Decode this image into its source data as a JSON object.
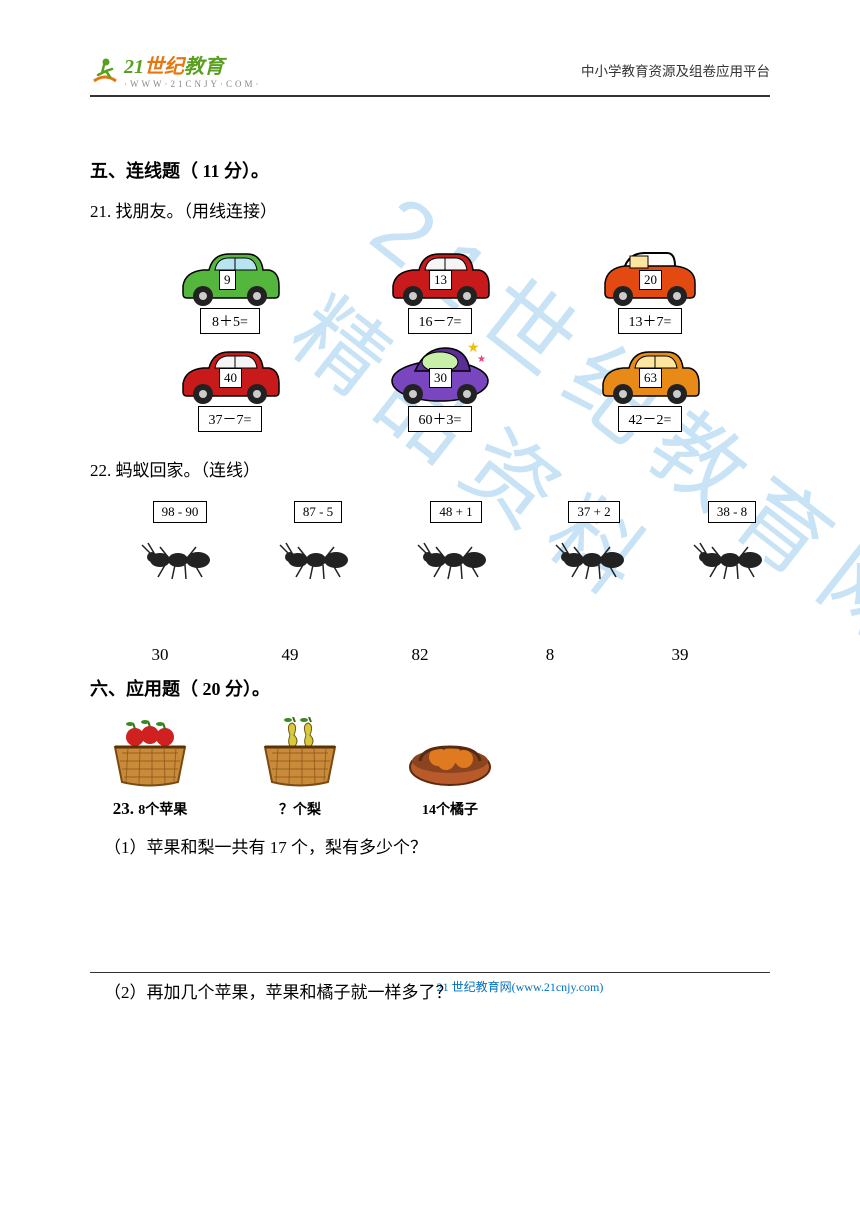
{
  "header": {
    "logo_brand_cn": "世纪",
    "logo_brand_prefix": "21",
    "logo_brand_suffix": "教育",
    "logo_url": "·WWW·21CNJY·COM·",
    "tagline": "中小学教育资源及组卷应用平台"
  },
  "watermark": "21世纪教育网精品资料",
  "section5": {
    "title": "五、连线题（ 11 分）。",
    "q21": {
      "num": "21.",
      "text": " 找朋友。（用线连接）",
      "cars": [
        {
          "value": "9",
          "expr": "8＋5=",
          "body": "#55b63e",
          "roof": "#3a8c2a",
          "wheel": "#222",
          "window": "#b8e4f2"
        },
        {
          "value": "13",
          "expr": "16－7=",
          "body": "#c81a1a",
          "roof": "#a01212",
          "wheel": "#222",
          "window": "#f5f5f5"
        },
        {
          "value": "20",
          "expr": "13＋7=",
          "body": "#e24a12",
          "roof": "#b83808",
          "wheel": "#222",
          "window": "#ffe6a0"
        },
        {
          "value": "40",
          "expr": "37－7=",
          "body": "#c81a1a",
          "roof": "#a01212",
          "wheel": "#222",
          "window": "#f5f5f5"
        },
        {
          "value": "30",
          "expr": "60＋3=",
          "body": "#7a46c0",
          "roof": "#5a2f95",
          "wheel": "#222",
          "window": "#c9f0a8"
        },
        {
          "value": "63",
          "expr": "42－2=",
          "body": "#e88a18",
          "roof": "#b86c10",
          "wheel": "#222",
          "window": "#ffe6a0"
        }
      ]
    },
    "q22": {
      "num": "22.",
      "text": " 蚂蚁回家。（连线）",
      "ants": [
        {
          "expr": "98 - 90"
        },
        {
          "expr": "87 - 5"
        },
        {
          "expr": "48 + 1"
        },
        {
          "expr": "37 + 2"
        },
        {
          "expr": "38 - 8"
        }
      ],
      "answers": [
        "30",
        "49",
        "82",
        "8",
        "39"
      ]
    }
  },
  "section6": {
    "title": "六、应用题（ 20 分）。",
    "q23": {
      "num": "23.",
      "fruits": [
        {
          "label": "8个苹果",
          "fill": "#d02020",
          "basket": "#c98a3a"
        },
        {
          "label": "？个梨",
          "fill": "#d8c840",
          "basket": "#c98a3a"
        },
        {
          "label": "14个橘子",
          "fill": "#e07a20",
          "basket": "#b85a2a"
        }
      ],
      "sub1": "（1）苹果和梨一共有 17 个，梨有多少个？",
      "sub2": "（2）再加几个苹果，苹果和橘子就一样多了？"
    }
  },
  "footer": {
    "text_prefix": "21 世纪教育网",
    "text_site": "(www.21cnjy.com)"
  },
  "colors": {
    "wm": "#6fb8e6",
    "footer": "#0070c0",
    "ant": "#222222"
  }
}
